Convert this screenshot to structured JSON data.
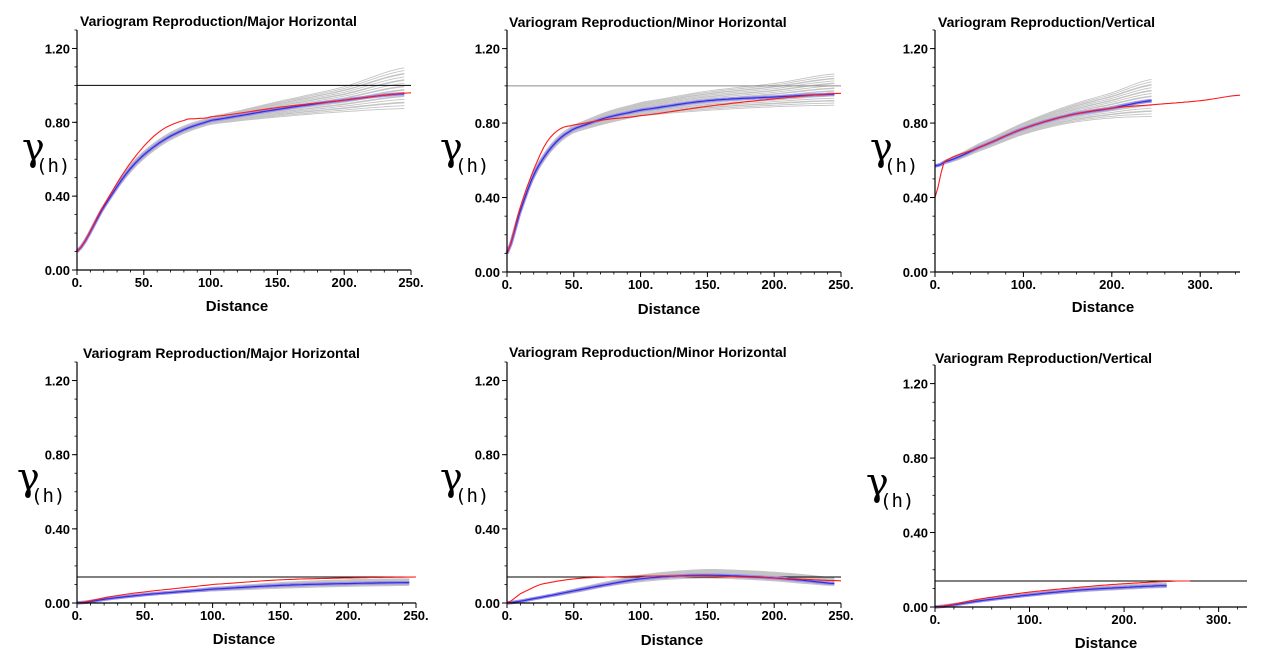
{
  "chart_data": [
    {
      "type": "line",
      "title": "Variogram Reproduction/Major Horizontal",
      "xlabel": "Distance",
      "ylabel_symbol": "γ",
      "ylabel_sub": "(h)",
      "xlim": [
        0,
        250
      ],
      "ylim": [
        0,
        1.3
      ],
      "xticks": [
        0,
        50,
        100,
        150,
        200,
        250
      ],
      "xtick_labels": [
        "0.",
        "50.",
        "100.",
        "150.",
        "200.",
        "250."
      ],
      "yticks": [
        0,
        0.4,
        0.8,
        1.2
      ],
      "ytick_labels": [
        "0.00",
        "0.40",
        "0.80",
        "1.20"
      ],
      "sill": 1.0,
      "model": {
        "x": [
          0,
          20,
          40,
          60,
          80,
          90,
          100,
          150,
          200,
          250
        ],
        "y": [
          0.1,
          0.35,
          0.58,
          0.74,
          0.81,
          0.82,
          0.83,
          0.88,
          0.92,
          0.96
        ]
      },
      "sim_mean": {
        "x": [
          0,
          20,
          40,
          60,
          80,
          100,
          150,
          200,
          245
        ],
        "y": [
          0.1,
          0.34,
          0.55,
          0.68,
          0.76,
          0.81,
          0.87,
          0.92,
          0.955
        ]
      },
      "sim_band": {
        "x": [
          0,
          20,
          40,
          60,
          80,
          100,
          150,
          200,
          245
        ],
        "lo": [
          0.1,
          0.33,
          0.53,
          0.66,
          0.74,
          0.79,
          0.83,
          0.86,
          0.88
        ],
        "hi": [
          0.1,
          0.35,
          0.57,
          0.7,
          0.78,
          0.83,
          0.91,
          0.99,
          1.09
        ]
      },
      "sim_count": 20
    },
    {
      "type": "line",
      "title": "Variogram Reproduction/Minor Horizontal",
      "xlabel": "Distance",
      "ylabel_symbol": "γ",
      "ylabel_sub": "(h)",
      "xlim": [
        0,
        250
      ],
      "ylim": [
        0,
        1.3
      ],
      "xticks": [
        0,
        50,
        100,
        150,
        200,
        250
      ],
      "xtick_labels": [
        "0.",
        "50.",
        "100.",
        "150.",
        "200.",
        "250."
      ],
      "yticks": [
        0,
        0.4,
        0.8,
        1.2
      ],
      "ytick_labels": [
        "0.00",
        "0.40",
        "0.80",
        "1.20"
      ],
      "sill": 1.0,
      "model": {
        "x": [
          0,
          10,
          20,
          30,
          40,
          50,
          75,
          100,
          150,
          200,
          250
        ],
        "y": [
          0.1,
          0.35,
          0.55,
          0.7,
          0.77,
          0.79,
          0.82,
          0.84,
          0.89,
          0.93,
          0.96
        ]
      },
      "sim_mean": {
        "x": [
          0,
          10,
          20,
          30,
          40,
          50,
          75,
          100,
          150,
          200,
          245
        ],
        "y": [
          0.1,
          0.33,
          0.52,
          0.64,
          0.72,
          0.77,
          0.83,
          0.87,
          0.92,
          0.94,
          0.955
        ]
      },
      "sim_band": {
        "x": [
          0,
          10,
          20,
          30,
          40,
          50,
          75,
          100,
          150,
          200,
          245
        ],
        "lo": [
          0.1,
          0.32,
          0.5,
          0.62,
          0.7,
          0.75,
          0.8,
          0.84,
          0.87,
          0.89,
          0.9
        ],
        "hi": [
          0.1,
          0.34,
          0.54,
          0.66,
          0.74,
          0.79,
          0.86,
          0.91,
          0.97,
          1.01,
          1.06
        ]
      },
      "sim_count": 20
    },
    {
      "type": "line",
      "title": "Variogram Reproduction/Vertical",
      "xlabel": "Distance",
      "ylabel_symbol": "γ",
      "ylabel_sub": "(h)",
      "xlim": [
        0,
        345
      ],
      "ylim": [
        0,
        1.3
      ],
      "xticks": [
        0,
        100,
        200,
        300
      ],
      "xtick_labels": [
        "0.",
        "100.",
        "200.",
        "300."
      ],
      "yticks": [
        0,
        0.4,
        0.8,
        1.2
      ],
      "ytick_labels": [
        "0.00",
        "0.40",
        "0.80",
        "1.20"
      ],
      "sill": null,
      "model": {
        "x": [
          0,
          10,
          50,
          100,
          150,
          200,
          250,
          300,
          345
        ],
        "y": [
          0.4,
          0.59,
          0.67,
          0.77,
          0.84,
          0.88,
          0.9,
          0.92,
          0.95
        ]
      },
      "sim_mean": {
        "x": [
          0,
          10,
          50,
          100,
          150,
          200,
          245
        ],
        "y": [
          0.57,
          0.59,
          0.67,
          0.77,
          0.84,
          0.88,
          0.92
        ]
      },
      "sim_band": {
        "x": [
          0,
          10,
          50,
          100,
          150,
          200,
          245
        ],
        "lo": [
          0.57,
          0.58,
          0.65,
          0.74,
          0.8,
          0.83,
          0.84
        ],
        "hi": [
          0.57,
          0.6,
          0.69,
          0.8,
          0.89,
          0.96,
          1.03
        ]
      },
      "sim_count": 20
    },
    {
      "type": "line",
      "title": "Variogram Reproduction/Major Horizontal",
      "xlabel": "Distance",
      "ylabel_symbol": "γ",
      "ylabel_sub": "(h)",
      "xlim": [
        0,
        250
      ],
      "ylim": [
        0,
        1.3
      ],
      "xticks": [
        0,
        50,
        100,
        150,
        200,
        250
      ],
      "xtick_labels": [
        "0.",
        "50.",
        "100.",
        "150.",
        "200.",
        "250."
      ],
      "yticks": [
        0,
        0.4,
        0.8,
        1.2
      ],
      "ytick_labels": [
        "0.00",
        "0.40",
        "0.80",
        "1.20"
      ],
      "sill": 0.14,
      "model": {
        "x": [
          0,
          25,
          50,
          75,
          100,
          150,
          200,
          250
        ],
        "y": [
          0,
          0.035,
          0.06,
          0.08,
          0.1,
          0.125,
          0.135,
          0.14
        ]
      },
      "sim_mean": {
        "x": [
          0,
          25,
          50,
          75,
          100,
          150,
          200,
          245
        ],
        "y": [
          0,
          0.025,
          0.045,
          0.06,
          0.075,
          0.095,
          0.105,
          0.11
        ]
      },
      "sim_band": {
        "x": [
          0,
          25,
          50,
          75,
          100,
          150,
          200,
          245
        ],
        "lo": [
          0,
          0.02,
          0.04,
          0.055,
          0.065,
          0.08,
          0.09,
          0.095
        ],
        "hi": [
          0,
          0.03,
          0.05,
          0.068,
          0.085,
          0.11,
          0.125,
          0.13
        ]
      },
      "sim_count": 20
    },
    {
      "type": "line",
      "title": "Variogram Reproduction/Minor Horizontal",
      "xlabel": "Distance",
      "ylabel_symbol": "γ",
      "ylabel_sub": "(h)",
      "xlim": [
        0,
        250
      ],
      "ylim": [
        0,
        1.3
      ],
      "xticks": [
        0,
        50,
        100,
        150,
        200,
        250
      ],
      "xtick_labels": [
        "0.",
        "50.",
        "100.",
        "150.",
        "200.",
        "250."
      ],
      "yticks": [
        0,
        0.4,
        0.8,
        1.2
      ],
      "ytick_labels": [
        "0.00",
        "0.40",
        "0.80",
        "1.20"
      ],
      "sill": 0.14,
      "model": {
        "x": [
          0,
          10,
          25,
          50,
          75,
          100,
          150,
          200,
          250
        ],
        "y": [
          0,
          0.05,
          0.1,
          0.13,
          0.14,
          0.145,
          0.145,
          0.135,
          0.12
        ]
      },
      "sim_mean": {
        "x": [
          0,
          25,
          50,
          75,
          100,
          125,
          150,
          175,
          200,
          225,
          245
        ],
        "y": [
          0,
          0.03,
          0.065,
          0.1,
          0.13,
          0.145,
          0.15,
          0.145,
          0.135,
          0.12,
          0.105
        ]
      },
      "sim_band": {
        "x": [
          0,
          25,
          50,
          75,
          100,
          125,
          150,
          175,
          200,
          225,
          245
        ],
        "lo": [
          0,
          0.025,
          0.055,
          0.09,
          0.115,
          0.13,
          0.135,
          0.13,
          0.12,
          0.105,
          0.095
        ],
        "hi": [
          0,
          0.035,
          0.075,
          0.115,
          0.15,
          0.17,
          0.18,
          0.175,
          0.165,
          0.15,
          0.135
        ]
      },
      "sim_count": 20
    },
    {
      "type": "line",
      "title": "Variogram Reproduction/Vertical",
      "xlabel": "Distance",
      "ylabel_symbol": "γ",
      "ylabel_sub": "(h)",
      "xlim": [
        0,
        330
      ],
      "ylim": [
        0,
        1.3
      ],
      "xticks": [
        0,
        100,
        200,
        300
      ],
      "xtick_labels": [
        "0.",
        "100.",
        "200.",
        "300."
      ],
      "yticks": [
        0,
        0.4,
        0.8,
        1.2
      ],
      "ytick_labels": [
        "0.00",
        "0.40",
        "0.80",
        "1.20"
      ],
      "sill": 0.14,
      "model": {
        "x": [
          0,
          50,
          100,
          150,
          200,
          250,
          270
        ],
        "y": [
          0,
          0.045,
          0.08,
          0.105,
          0.125,
          0.138,
          0.14
        ]
      },
      "sim_mean": {
        "x": [
          0,
          50,
          100,
          150,
          200,
          245
        ],
        "y": [
          0,
          0.035,
          0.065,
          0.09,
          0.105,
          0.115
        ]
      },
      "sim_band": {
        "x": [
          0,
          50,
          100,
          150,
          200,
          245
        ],
        "lo": [
          0,
          0.03,
          0.058,
          0.08,
          0.095,
          0.105
        ],
        "hi": [
          0,
          0.042,
          0.075,
          0.1,
          0.118,
          0.13
        ]
      },
      "sim_count": 20
    }
  ],
  "colors": {
    "model": "#ff1a1a",
    "sim_mean": "#2f2fdc",
    "sim_mean_halo": "#9b8fe8",
    "realizations": "#c4c4c4",
    "sill": "#000000",
    "sill_gray": "#8c8c8c",
    "axis": "#000000"
  }
}
